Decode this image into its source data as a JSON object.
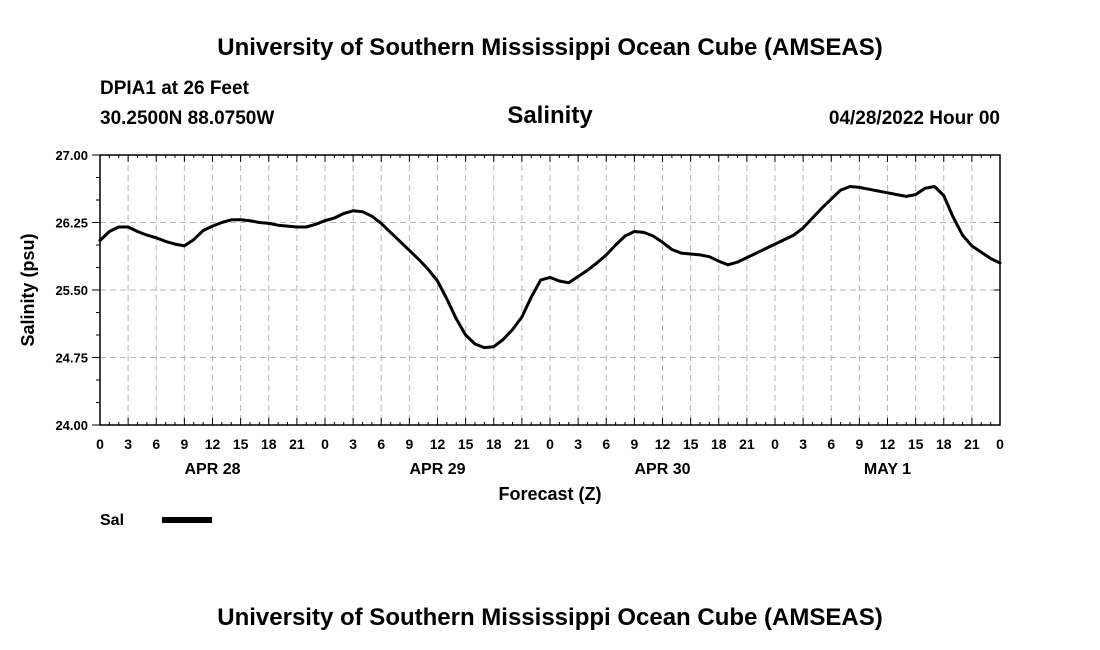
{
  "header": {
    "title": "University of Southern Mississippi Ocean Cube (AMSEAS)",
    "station": "DPIA1 at 26 Feet",
    "coords": "30.2500N  88.0750W",
    "variable": "Salinity",
    "run": "04/28/2022 Hour 00"
  },
  "footer": {
    "title": "University of Southern Mississippi Ocean Cube (AMSEAS)"
  },
  "chart_data": {
    "type": "line",
    "title": "Salinity",
    "xlabel": "Forecast (Z)",
    "ylabel": "Salinity (psu)",
    "ylim": [
      24.0,
      27.0
    ],
    "xlim": [
      0,
      96
    ],
    "yticks": [
      "24.00",
      "24.75",
      "25.50",
      "26.25",
      "27.00"
    ],
    "xtick_labels": [
      "0",
      "3",
      "6",
      "9",
      "12",
      "15",
      "18",
      "21",
      "0",
      "3",
      "6",
      "9",
      "12",
      "15",
      "18",
      "21",
      "0",
      "3",
      "6",
      "9",
      "12",
      "15",
      "18",
      "21",
      "0",
      "3",
      "6",
      "9",
      "12",
      "15",
      "18",
      "21",
      "0"
    ],
    "day_labels": [
      {
        "label": "APR 28",
        "hour": 12
      },
      {
        "label": "APR 29",
        "hour": 36
      },
      {
        "label": "APR 30",
        "hour": 60
      },
      {
        "label": "MAY 1",
        "hour": 84
      }
    ],
    "series": [
      {
        "name": "Sal",
        "x": [
          0,
          1,
          2,
          3,
          4,
          5,
          6,
          7,
          8,
          9,
          10,
          11,
          12,
          13,
          14,
          15,
          16,
          17,
          18,
          19,
          20,
          21,
          22,
          23,
          24,
          25,
          26,
          27,
          28,
          29,
          30,
          31,
          32,
          33,
          34,
          35,
          36,
          37,
          38,
          39,
          40,
          41,
          42,
          43,
          44,
          45,
          46,
          47,
          48,
          49,
          50,
          51,
          52,
          53,
          54,
          55,
          56,
          57,
          58,
          59,
          60,
          61,
          62,
          63,
          64,
          65,
          66,
          67,
          68,
          69,
          70,
          71,
          72,
          73,
          74,
          75,
          76,
          77,
          78,
          79,
          80,
          81,
          82,
          83,
          84,
          85,
          86,
          87,
          88,
          89,
          90,
          91,
          92,
          93,
          94,
          95,
          96
        ],
        "values": [
          26.05,
          26.15,
          26.2,
          26.2,
          26.15,
          26.11,
          26.08,
          26.04,
          26.01,
          25.99,
          26.06,
          26.16,
          26.21,
          26.25,
          26.28,
          26.28,
          26.27,
          26.25,
          26.24,
          26.22,
          26.21,
          26.2,
          26.2,
          26.23,
          26.27,
          26.3,
          26.35,
          26.38,
          26.37,
          26.32,
          26.24,
          26.14,
          26.04,
          25.94,
          25.84,
          25.73,
          25.6,
          25.4,
          25.18,
          25.0,
          24.9,
          24.86,
          24.87,
          24.95,
          25.06,
          25.2,
          25.42,
          25.61,
          25.64,
          25.6,
          25.58,
          25.65,
          25.72,
          25.8,
          25.89,
          26.0,
          26.1,
          26.15,
          26.14,
          26.1,
          26.03,
          25.95,
          25.91,
          25.9,
          25.89,
          25.87,
          25.82,
          25.78,
          25.81,
          25.86,
          25.91,
          25.96,
          26.01,
          26.06,
          26.11,
          26.19,
          26.3,
          26.41,
          26.51,
          26.61,
          26.65,
          26.64,
          26.62,
          26.6,
          26.58,
          26.56,
          26.54,
          26.56,
          26.63,
          26.65,
          26.55,
          26.31,
          26.11,
          25.99,
          25.92,
          25.85,
          25.8
        ]
      }
    ],
    "grid": true,
    "legend": "bottom-left"
  }
}
